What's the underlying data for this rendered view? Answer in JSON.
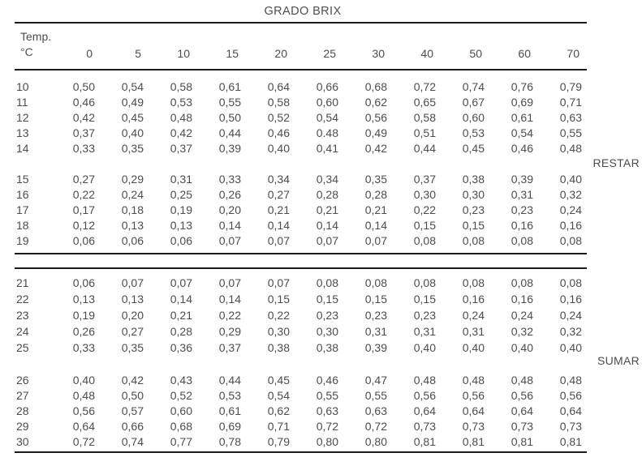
{
  "palette": {
    "text": "#4d4d4d",
    "rule": "#1a1a1a",
    "background": "#ffffff"
  },
  "title": "GRADO BRIX",
  "labels": {
    "restar": "RESTAR",
    "sumar": "SUMAR"
  },
  "table": {
    "temp_label_line1": "Temp.",
    "temp_label_line2": "°C",
    "brix_columns": [
      "0",
      "5",
      "10",
      "15",
      "20",
      "25",
      "30",
      "40",
      "50",
      "60",
      "70"
    ],
    "blocks": [
      {
        "name": "restar-upper",
        "rows": [
          {
            "temp": "10",
            "values": [
              "0,50",
              "0,54",
              "0,58",
              "0,61",
              "0,64",
              "0,66",
              "0,68",
              "0,72",
              "0,74",
              "0,76",
              "0,79"
            ]
          },
          {
            "temp": "11",
            "values": [
              "0,46",
              "0,49",
              "0,53",
              "0,55",
              "0,58",
              "0,60",
              "0,62",
              "0,65",
              "0,67",
              "0,69",
              "0,71"
            ]
          },
          {
            "temp": "12",
            "values": [
              "0,42",
              "0,45",
              "0,48",
              "0,50",
              "0,52",
              "0,54",
              "0,56",
              "0,58",
              "0,60",
              "0,61",
              "0,63"
            ]
          },
          {
            "temp": "13",
            "values": [
              "0,37",
              "0,40",
              "0,42",
              "0,44",
              "0,46",
              "0.48",
              "0,49",
              "0,51",
              "0,53",
              "0,54",
              "0,55"
            ]
          },
          {
            "temp": "14",
            "values": [
              "0,33",
              "0,35",
              "0,37",
              "0,39",
              "0,40",
              "0,41",
              "0,42",
              "0,44",
              "0,45",
              "0,46",
              "0,48"
            ]
          }
        ]
      },
      {
        "name": "restar-lower",
        "rows": [
          {
            "temp": "15",
            "values": [
              "0,27",
              "0,29",
              "0,31",
              "0,33",
              "0,34",
              "0,34",
              "0,35",
              "0,37",
              "0,38",
              "0,39",
              "0,40"
            ]
          },
          {
            "temp": "16",
            "values": [
              "0,22",
              "0,24",
              "0,25",
              "0,26",
              "0,27",
              "0,28",
              "0,28",
              "0,30",
              "0,30",
              "0,31",
              "0,32"
            ]
          },
          {
            "temp": "17",
            "values": [
              "0,17",
              "0,18",
              "0,19",
              "0,20",
              "0,21",
              "0,21",
              "0,21",
              "0,22",
              "0,23",
              "0,23",
              "0,24"
            ]
          },
          {
            "temp": "18",
            "values": [
              "0,12",
              "0,13",
              "0,13",
              "0,14",
              "0,14",
              "0,14",
              "0,14",
              "0,15",
              "0,15",
              "0,16",
              "0,16"
            ]
          },
          {
            "temp": "19",
            "values": [
              "0,06",
              "0,06",
              "0,06",
              "0,07",
              "0,07",
              "0,07",
              "0,07",
              "0,08",
              "0,08",
              "0,08",
              "0,08"
            ]
          }
        ]
      },
      {
        "name": "sumar-upper",
        "rows": [
          {
            "temp": "21",
            "values": [
              "0,06",
              "0,07",
              "0,07",
              "0,07",
              "0,07",
              "0,08",
              "0,08",
              "0,08",
              "0,08",
              "0,08",
              "0,08"
            ]
          },
          {
            "temp": "22",
            "values": [
              "0,13",
              "0,13",
              "0,14",
              "0,14",
              "0,15",
              "0,15",
              "0,15",
              "0,15",
              "0,16",
              "0,16",
              "0,16"
            ]
          },
          {
            "temp": "23",
            "values": [
              "0,19",
              "0,20",
              "0,21",
              "0,22",
              "0,22",
              "0,23",
              "0,23",
              "0,23",
              "0,24",
              "0,24",
              "0,24"
            ]
          },
          {
            "temp": "24",
            "values": [
              "0,26",
              "0,27",
              "0,28",
              "0,29",
              "0,30",
              "0,30",
              "0,31",
              "0,31",
              "0,31",
              "0,32",
              "0,32"
            ]
          },
          {
            "temp": "25",
            "values": [
              "0,33",
              "0,35",
              "0,36",
              "0,37",
              "0,38",
              "0,38",
              "0,39",
              "0,40",
              "0,40",
              "0,40",
              "0,40"
            ]
          }
        ]
      },
      {
        "name": "sumar-lower",
        "rows": [
          {
            "temp": "26",
            "values": [
              "0,40",
              "0,42",
              "0,43",
              "0,44",
              "0,45",
              "0,46",
              "0,47",
              "0,48",
              "0,48",
              "0,48",
              "0,48"
            ]
          },
          {
            "temp": "27",
            "values": [
              "0,48",
              "0,50",
              "0,52",
              "0,53",
              "0,54",
              "0,55",
              "0,55",
              "0,56",
              "0,56",
              "0,56",
              "0,56"
            ]
          },
          {
            "temp": "28",
            "values": [
              "0,56",
              "0,57",
              "0,60",
              "0,61",
              "0,62",
              "0,63",
              "0,63",
              "0,64",
              "0,64",
              "0,64",
              "0,64"
            ]
          },
          {
            "temp": "29",
            "values": [
              "0,64",
              "0,66",
              "0,68",
              "0,69",
              "0,71",
              "0,72",
              "0,72",
              "0,73",
              "0,73",
              "0,73",
              "0,73"
            ]
          },
          {
            "temp": "30",
            "values": [
              "0,72",
              "0,74",
              "0,77",
              "0,78",
              "0,79",
              "0,80",
              "0,80",
              "0,81",
              "0,81",
              "0,81",
              "0,81"
            ]
          }
        ]
      }
    ]
  }
}
